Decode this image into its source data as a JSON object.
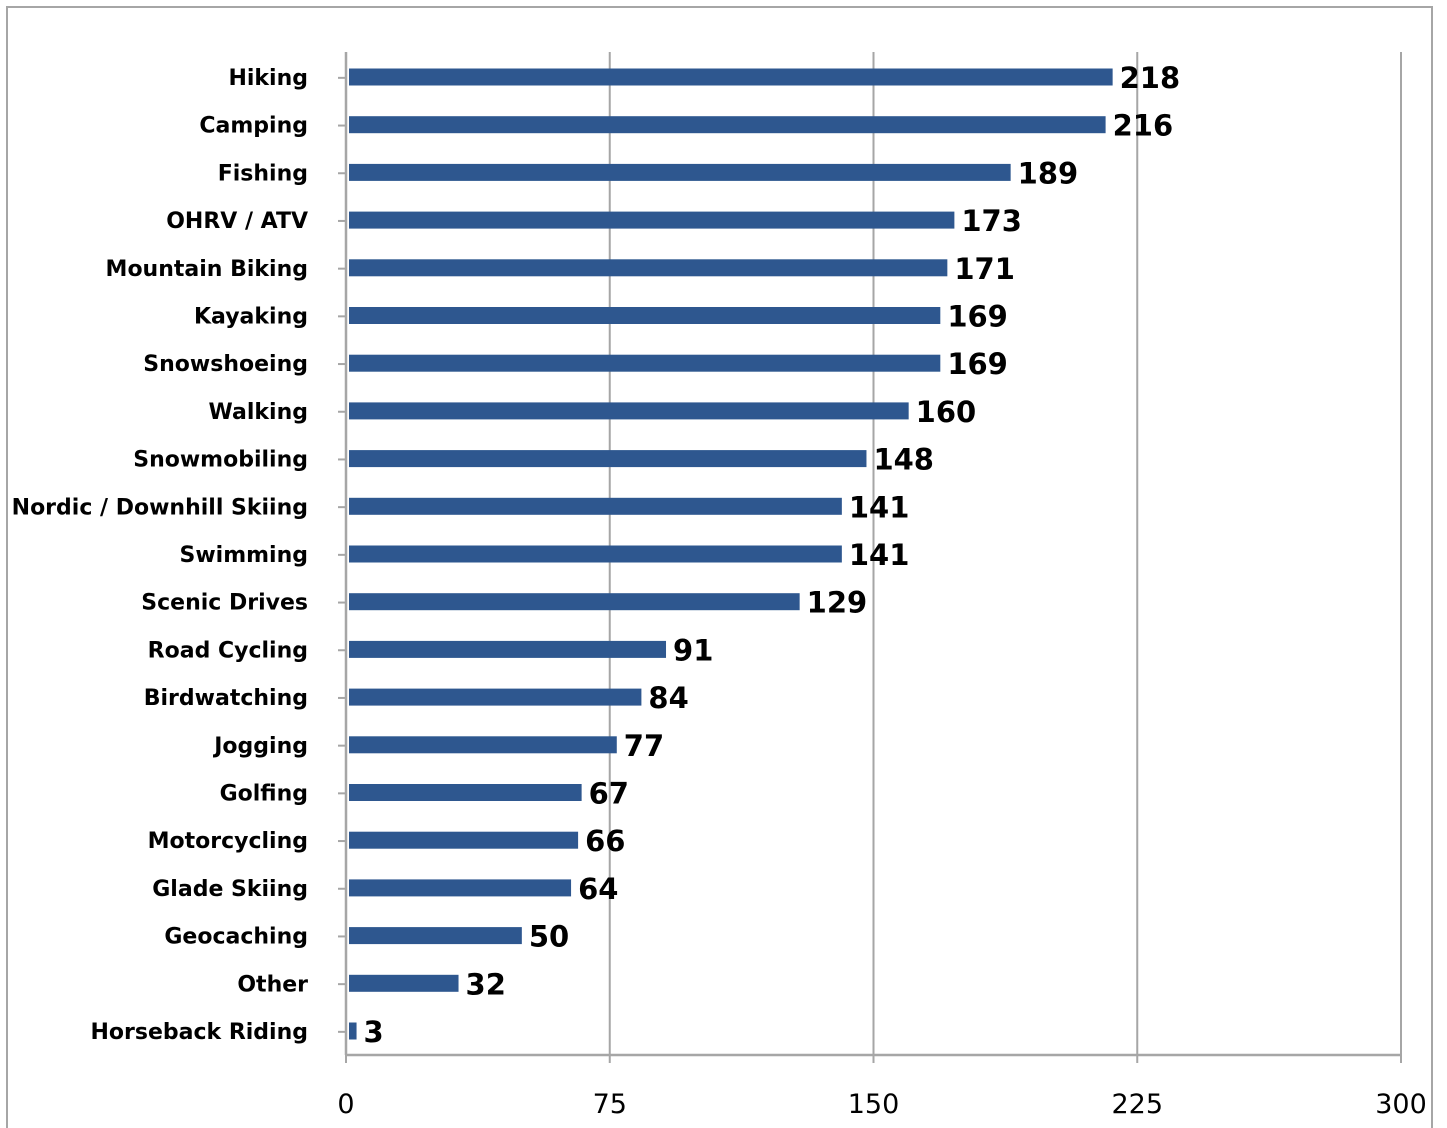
{
  "chart_data": {
    "type": "bar",
    "orientation": "horizontal",
    "title": "",
    "xlabel": "",
    "ylabel": "",
    "categories": [
      "Hiking",
      "Camping",
      "Fishing",
      "OHRV / ATV",
      "Mountain Biking",
      "Kayaking",
      "Snowshoeing",
      "Walking",
      "Snowmobiling",
      "Nordic / Downhill Skiing",
      "Swimming",
      "Scenic Drives",
      "Road Cycling",
      "Birdwatching",
      "Jogging",
      "Golfing",
      "Motorcycling",
      "Glade Skiing",
      "Geocaching",
      "Other",
      "Horseback Riding"
    ],
    "values": [
      218,
      216,
      189,
      173,
      171,
      169,
      169,
      160,
      148,
      141,
      141,
      129,
      91,
      84,
      77,
      67,
      66,
      64,
      50,
      32,
      3
    ],
    "xlim": [
      0,
      300
    ],
    "xticks": [
      0,
      75,
      150,
      225,
      300
    ],
    "grid": "vertical",
    "legend": "none",
    "colors": {
      "bar": "#2e578f",
      "grid": "#a6a6a6",
      "axis": "#a6a6a6",
      "text": "#000000"
    }
  }
}
